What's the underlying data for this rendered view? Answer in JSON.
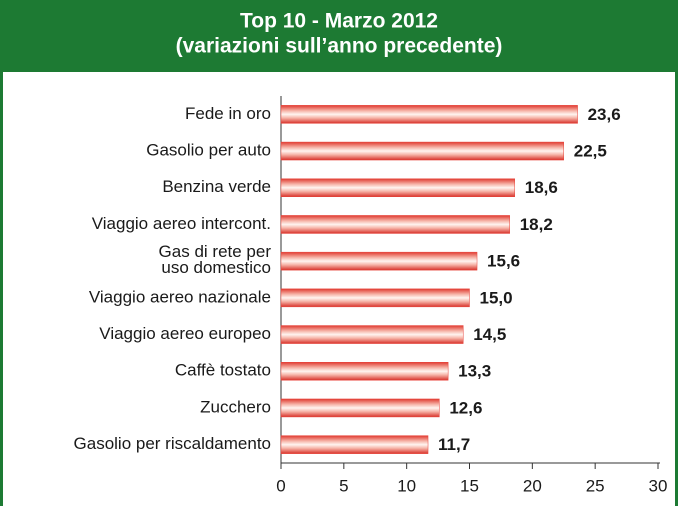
{
  "chart_data": {
    "type": "bar",
    "orientation": "horizontal",
    "title": "Top 10 - Marzo 2012",
    "subtitle": "(variazioni sull’anno precedente)",
    "categories": [
      "Fede in oro",
      "Gasolio per auto",
      "Benzina verde",
      "Viaggio aereo intercont.",
      "Gas di rete per uso domestico",
      "Viaggio aereo nazionale",
      "Viaggio aereo europeo",
      "Caffè tostato",
      "Zucchero",
      "Gasolio per riscaldamento"
    ],
    "values": [
      23.6,
      22.5,
      18.6,
      18.2,
      15.6,
      15.0,
      14.5,
      13.3,
      12.6,
      11.7
    ],
    "value_labels": [
      "23,6",
      "22,5",
      "18,6",
      "18,2",
      "15,6",
      "15,0",
      "14,5",
      "13,3",
      "12,6",
      "11,7"
    ],
    "color": "#e8453c",
    "xlim": [
      0,
      30
    ],
    "xticks": [
      0,
      5,
      10,
      15,
      20,
      25,
      30
    ],
    "grid": false
  }
}
